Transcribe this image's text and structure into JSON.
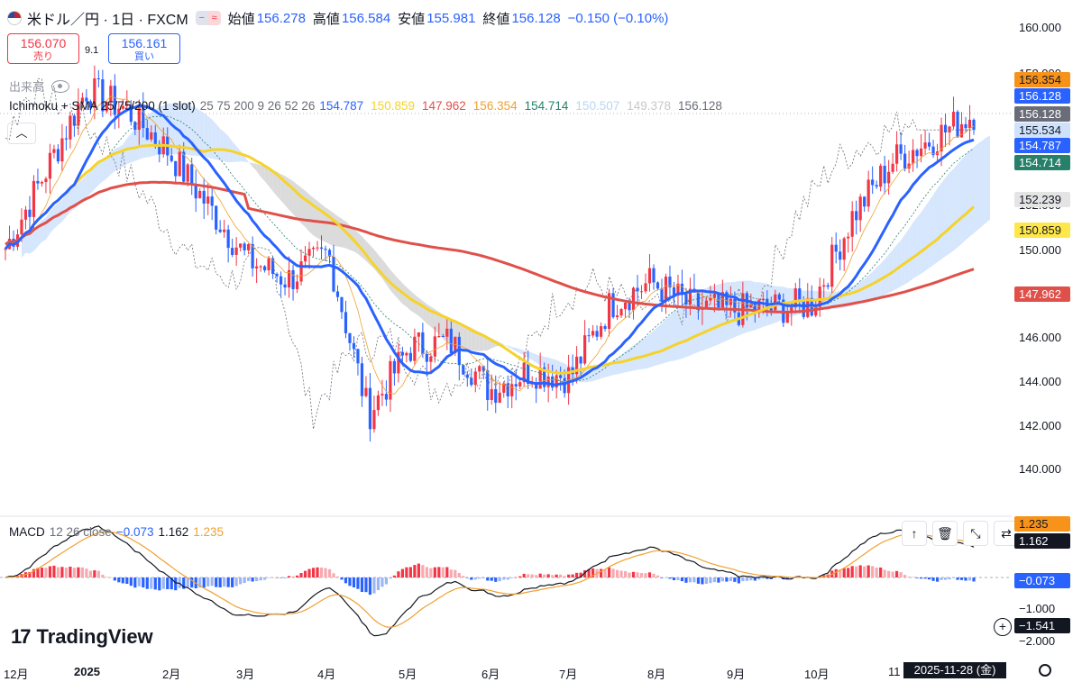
{
  "header": {
    "symbol": "米ドル／円 · 1日 · FXCM",
    "open_label": "始値",
    "open": "156.278",
    "high_label": "高値",
    "high": "156.584",
    "low_label": "安値",
    "low": "155.981",
    "close_label": "終値",
    "close": "156.128",
    "change": "−0.150 (−0.10%)"
  },
  "trade": {
    "sell_price": "156.070",
    "sell_label": "売り",
    "buy_price": "156.161",
    "buy_label": "買い",
    "spread": "9.1"
  },
  "volume_label": "出来高",
  "ichimoku": {
    "name": "Ichimoku + SMA 25/75/200 (1 slot)",
    "params": "25 75 200 9 26 52 26",
    "values": [
      {
        "v": "154.787",
        "color": "#2962ff"
      },
      {
        "v": "150.859",
        "color": "#f5d32a"
      },
      {
        "v": "147.962",
        "color": "#e0504a"
      },
      {
        "v": "156.354",
        "color": "#f0a030"
      },
      {
        "v": "154.714",
        "color": "#26806a"
      },
      {
        "v": "150.507",
        "color": "#b7d6f5"
      },
      {
        "v": "149.378",
        "color": "#c8c8c8"
      },
      {
        "v": "156.128",
        "color": "#6a6d78"
      }
    ]
  },
  "macd": {
    "name": "MACD",
    "params": "12 26 close",
    "v1": "−0.073",
    "v2": "1.162",
    "v3": "1.235"
  },
  "price_axis": [
    "160.000",
    "158.000",
    "152.000",
    "150.000",
    "146.000",
    "144.000",
    "142.000",
    "140.000"
  ],
  "price_tags": [
    {
      "v": "156.354",
      "bg": "#f7931a",
      "fg": "#131722"
    },
    {
      "v": "156.128",
      "bg": "#2962ff",
      "fg": "#ffffff"
    },
    {
      "v": "156.128",
      "bg": "#6a6d78",
      "fg": "#ffffff"
    },
    {
      "v": "155.534",
      "bg": "#cfe2fb",
      "fg": "#131722"
    },
    {
      "v": "154.787",
      "bg": "#2962ff",
      "fg": "#ffffff"
    },
    {
      "v": "154.714",
      "bg": "#26806a",
      "fg": "#ffffff"
    },
    {
      "v": "152.239",
      "bg": "#e4e4e4",
      "fg": "#131722"
    },
    {
      "v": "150.859",
      "bg": "#ffe74a",
      "fg": "#131722"
    },
    {
      "v": "147.962",
      "bg": "#e0504a",
      "fg": "#ffffff"
    }
  ],
  "macd_axis": [
    "−1.000",
    "−2.000"
  ],
  "macd_tags": [
    {
      "v": "1.235",
      "bg": "#f7931a",
      "fg": "#131722"
    },
    {
      "v": "1.162",
      "bg": "#131722",
      "fg": "#ffffff"
    },
    {
      "v": "−0.073",
      "bg": "#2962ff",
      "fg": "#ffffff"
    },
    {
      "v": "−1.541",
      "bg": "#131722",
      "fg": "#ffffff"
    }
  ],
  "time_axis": [
    "12月",
    "2025",
    "2月",
    "3月",
    "4月",
    "5月",
    "6月",
    "7月",
    "8月",
    "9月",
    "10月",
    "11"
  ],
  "crosshair_date": "2025-11-28 (金)",
  "brand": "TradingView",
  "colors": {
    "up": "#f23645",
    "down": "#2962ff",
    "sma25": "#2962ff",
    "sma75": "#f5d32a",
    "sma200": "#e0504a",
    "cloud_up": "#cfe2fb",
    "cloud_down": "#d5d5d5"
  },
  "chart_data": {
    "type": "line",
    "symbol_close_series": {
      "name": "USD/JPY close (approx., 1D)",
      "x": [
        "2024-12-01",
        "2024-12-15",
        "2025-01-01",
        "2025-01-15",
        "2025-02-01",
        "2025-02-15",
        "2025-03-01",
        "2025-03-15",
        "2025-04-01",
        "2025-04-15",
        "2025-05-01",
        "2025-05-15",
        "2025-06-01",
        "2025-06-15",
        "2025-07-01",
        "2025-07-15",
        "2025-08-01",
        "2025-08-15",
        "2025-09-01",
        "2025-09-15",
        "2025-10-01",
        "2025-10-15",
        "2025-11-01",
        "2025-11-15",
        "2025-11-28"
      ],
      "values": [
        150.0,
        153.5,
        157.2,
        156.3,
        154.5,
        152.0,
        149.5,
        148.6,
        149.8,
        142.5,
        145.5,
        145.8,
        143.6,
        144.5,
        144.2,
        147.5,
        148.5,
        147.4,
        147.2,
        147.3,
        147.5,
        151.5,
        154.0,
        155.0,
        156.128
      ]
    },
    "ylim": [
      139.5,
      160.5
    ]
  }
}
